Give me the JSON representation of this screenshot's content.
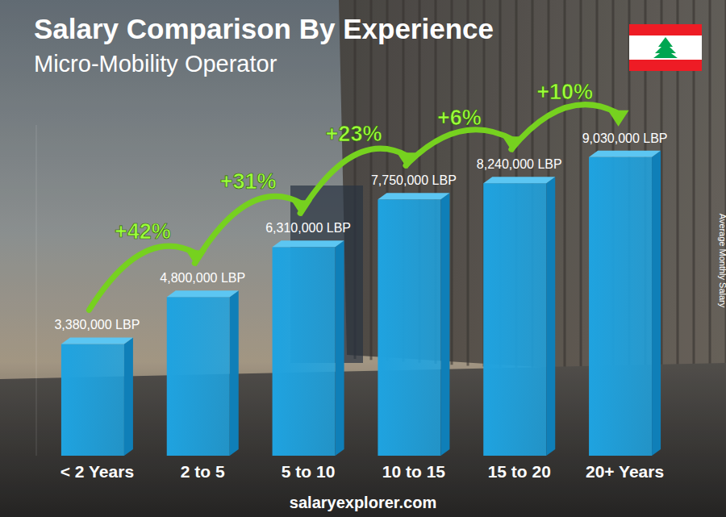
{
  "chart_data": {
    "type": "bar",
    "title": "Salary Comparison By Experience",
    "subtitle": "Micro-Mobility Operator",
    "y_label": "Average Monthly Salary",
    "source": "salaryexplorer.com",
    "categories": [
      "< 2 Years",
      "2 to 5",
      "5 to 10",
      "10 to 15",
      "15 to 20",
      "20+ Years"
    ],
    "values": [
      3380000,
      4800000,
      6310000,
      7750000,
      8240000,
      9030000
    ],
    "value_labels": [
      "3,380,000 LBP",
      "4,800,000 LBP",
      "6,310,000 LBP",
      "7,750,000 LBP",
      "8,240,000 LBP",
      "9,030,000 LBP"
    ],
    "annotations": [
      "+42%",
      "+31%",
      "+23%",
      "+6%",
      "+10%"
    ],
    "color": "#1fa3e0",
    "ylim": [
      0,
      10000000
    ],
    "tick_labels": false,
    "grid": false,
    "data_labels": true
  }
}
